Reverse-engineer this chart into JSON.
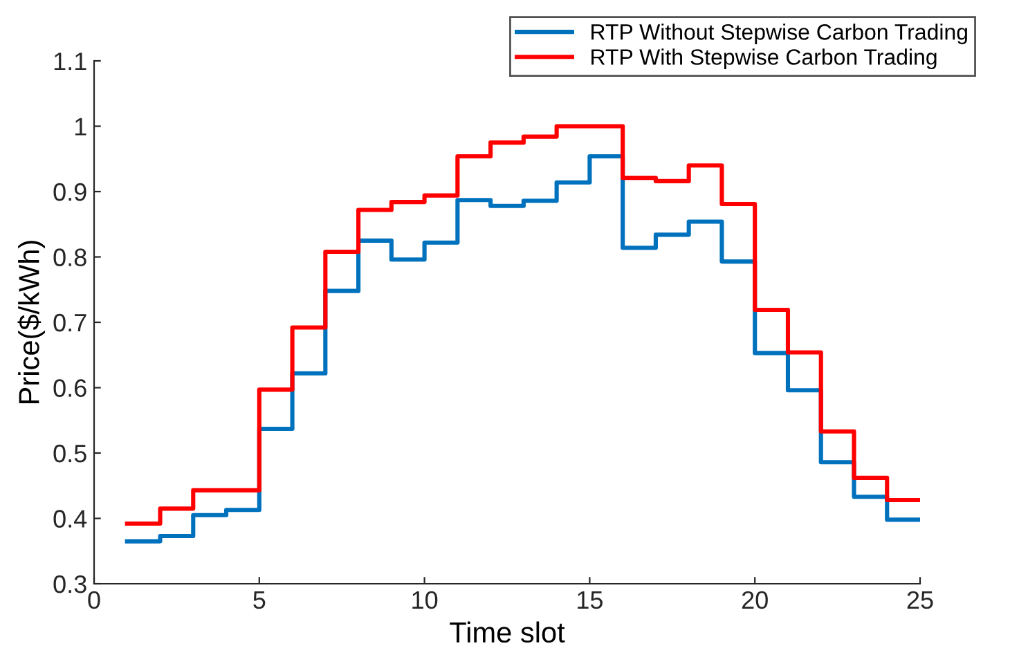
{
  "chart_data": {
    "type": "step",
    "xlabel": "Time slot",
    "ylabel": "Price($/kWh)",
    "x": [
      1,
      2,
      3,
      4,
      5,
      6,
      7,
      8,
      9,
      10,
      11,
      12,
      13,
      14,
      15,
      16,
      17,
      18,
      19,
      20,
      21,
      22,
      23,
      24,
      25
    ],
    "series": [
      {
        "name": "RTP Without Stepwise Carbon Trading",
        "color": "#0072bd",
        "values": [
          0.365,
          0.373,
          0.405,
          0.413,
          0.537,
          0.622,
          0.748,
          0.825,
          0.796,
          0.822,
          0.887,
          0.878,
          0.886,
          0.914,
          0.954,
          0.814,
          0.834,
          0.854,
          0.793,
          0.653,
          0.596,
          0.486,
          0.433,
          0.398,
          0.398
        ]
      },
      {
        "name": "RTP With Stepwise Carbon Trading",
        "color": "#ff0000",
        "values": [
          0.392,
          0.415,
          0.443,
          0.443,
          0.597,
          0.692,
          0.808,
          0.872,
          0.884,
          0.894,
          0.954,
          0.975,
          0.984,
          1.0,
          1.0,
          0.921,
          0.916,
          0.94,
          0.881,
          0.719,
          0.654,
          0.533,
          0.462,
          0.428,
          0.428
        ]
      }
    ],
    "xlim": [
      0,
      25
    ],
    "xticks": [
      0,
      5,
      10,
      15,
      20,
      25
    ],
    "ylim": [
      0.3,
      1.1
    ],
    "yticks": [
      0.3,
      0.4,
      0.5,
      0.6,
      0.7,
      0.8,
      0.9,
      1,
      1.1
    ],
    "grid": false,
    "legend": "top right",
    "line_style": "solid",
    "marker": "none"
  }
}
